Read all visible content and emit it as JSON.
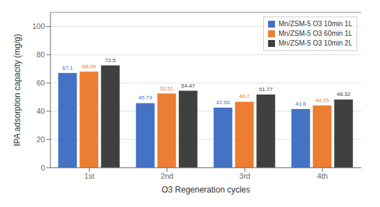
{
  "chart_data": {
    "type": "bar",
    "categories": [
      "1st",
      "2nd",
      "3rd",
      "4th"
    ],
    "series": [
      {
        "name": "Mn/ZSM-5 O3 10min 1L",
        "color": "#4472C4",
        "values": [
          67.1,
          45.73,
          42.56,
          41.6
        ]
      },
      {
        "name": "Mn/ZSM-5 O3 60min 1L",
        "color": "#ED7D31",
        "values": [
          68.09,
          52.51,
          46.7,
          44.15
        ]
      },
      {
        "name": "Mn/ZSM-5 O3 10min 2L",
        "color": "#404040",
        "values": [
          72.5,
          54.47,
          51.77,
          48.32
        ]
      }
    ],
    "xlabel": "O3 Regeneration cycles",
    "ylabel": "IPA adsorption capacity (mg/g)",
    "ylim": [
      0,
      110
    ],
    "yticks": [
      0,
      20,
      40,
      60,
      80,
      100
    ],
    "grid": true,
    "legend": "upper right",
    "data_labels": true
  }
}
